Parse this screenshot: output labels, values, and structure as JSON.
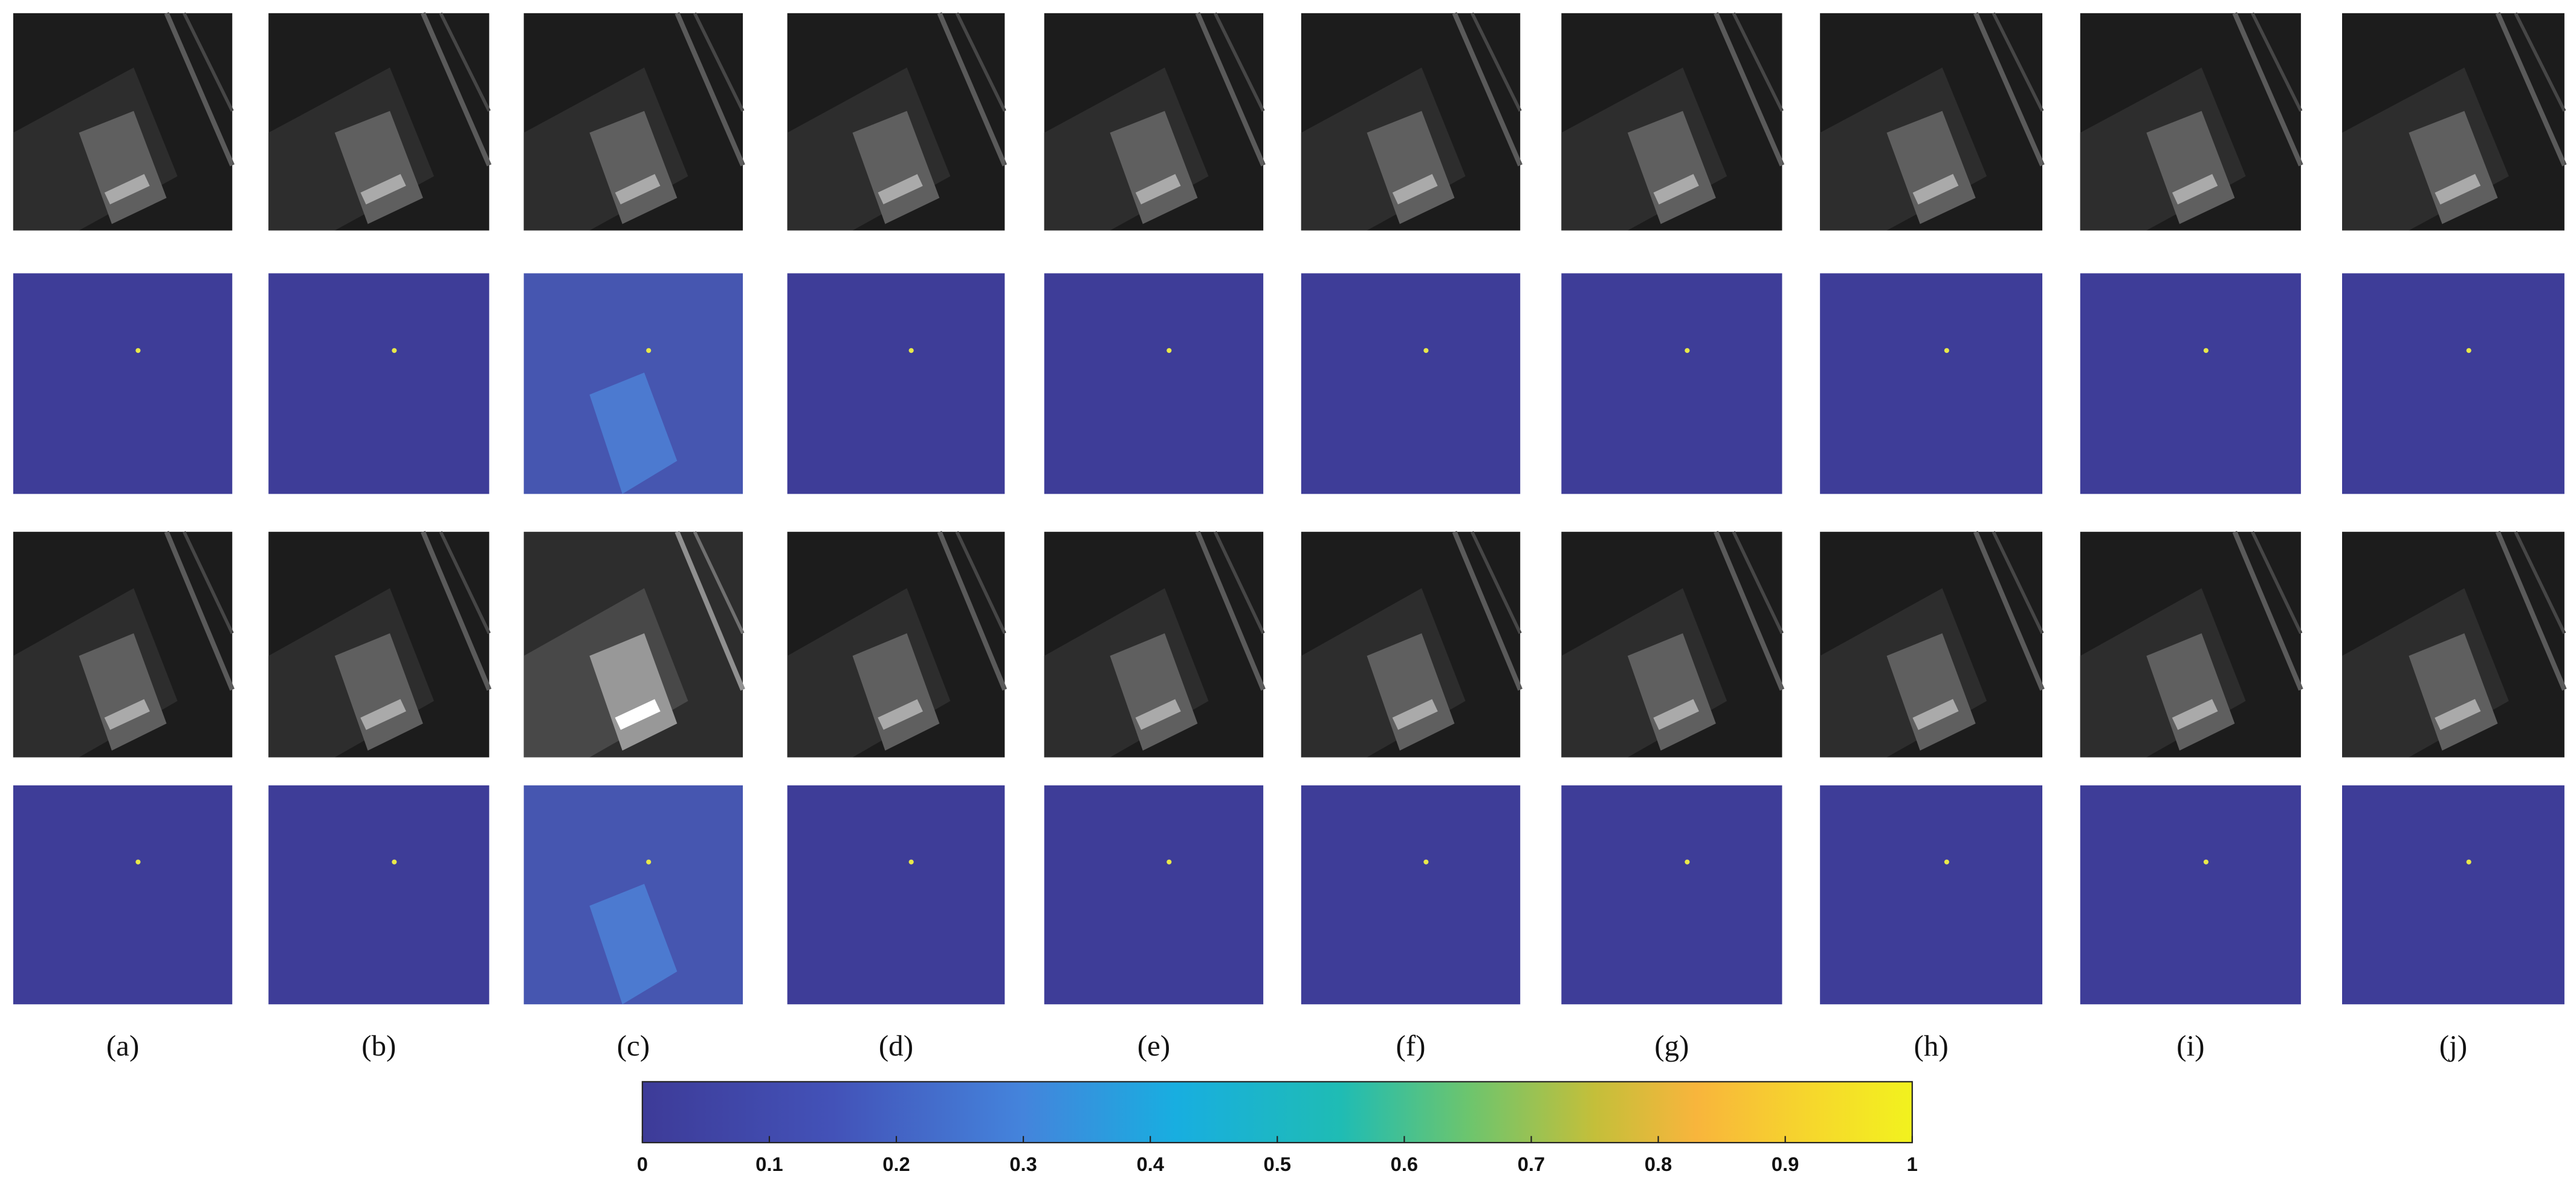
{
  "panels": {
    "labels": [
      "(a)",
      "(b)",
      "(c)",
      "(d)",
      "(e)",
      "(f)",
      "(g)",
      "(h)",
      "(i)",
      "(j)"
    ]
  },
  "colorbar": {
    "lim": [
      0,
      1
    ],
    "ticks": [
      0,
      0.1,
      0.2,
      0.3,
      0.4,
      0.5,
      0.6,
      0.7,
      0.8,
      0.9,
      1
    ]
  }
}
